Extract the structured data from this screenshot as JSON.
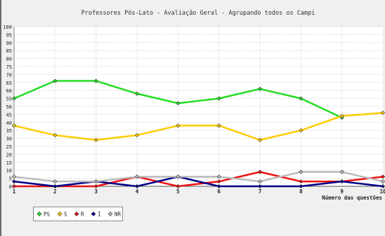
{
  "chart_data": {
    "type": "line",
    "title": "Professores Pós-Lato - Avaliação Geral - Agrupando todos os Campi",
    "xlabel": "Número das questões",
    "ylabel": "",
    "x": [
      1,
      2,
      3,
      4,
      5,
      6,
      7,
      8,
      9,
      10
    ],
    "xlim": [
      1,
      10
    ],
    "ylim": [
      0,
      100
    ],
    "y_ticks": [
      0,
      5,
      10,
      15,
      20,
      25,
      30,
      35,
      40,
      45,
      50,
      55,
      60,
      65,
      70,
      75,
      80,
      85,
      90,
      95,
      100
    ],
    "grid": true,
    "legend_position": "bottom-left",
    "series": [
      {
        "name": "PS",
        "color": "#22dd22",
        "values": [
          55,
          66,
          66,
          58,
          52,
          55,
          61,
          55,
          43,
          null
        ]
      },
      {
        "name": "S",
        "color": "#ffcc00",
        "values": [
          38,
          32,
          29,
          32,
          38,
          38,
          29,
          35,
          44,
          46
        ]
      },
      {
        "name": "R",
        "color": "#ee1111",
        "values": [
          0,
          0,
          0,
          6,
          0,
          3,
          9,
          3,
          3,
          6
        ]
      },
      {
        "name": "I",
        "color": "#000088",
        "values": [
          3,
          0,
          3,
          0,
          6,
          0,
          0,
          0,
          3,
          0
        ]
      },
      {
        "name": "NR",
        "color": "#bbbbbb",
        "values": [
          6,
          3,
          3,
          6,
          6,
          6,
          3,
          9,
          9,
          3
        ]
      }
    ]
  }
}
